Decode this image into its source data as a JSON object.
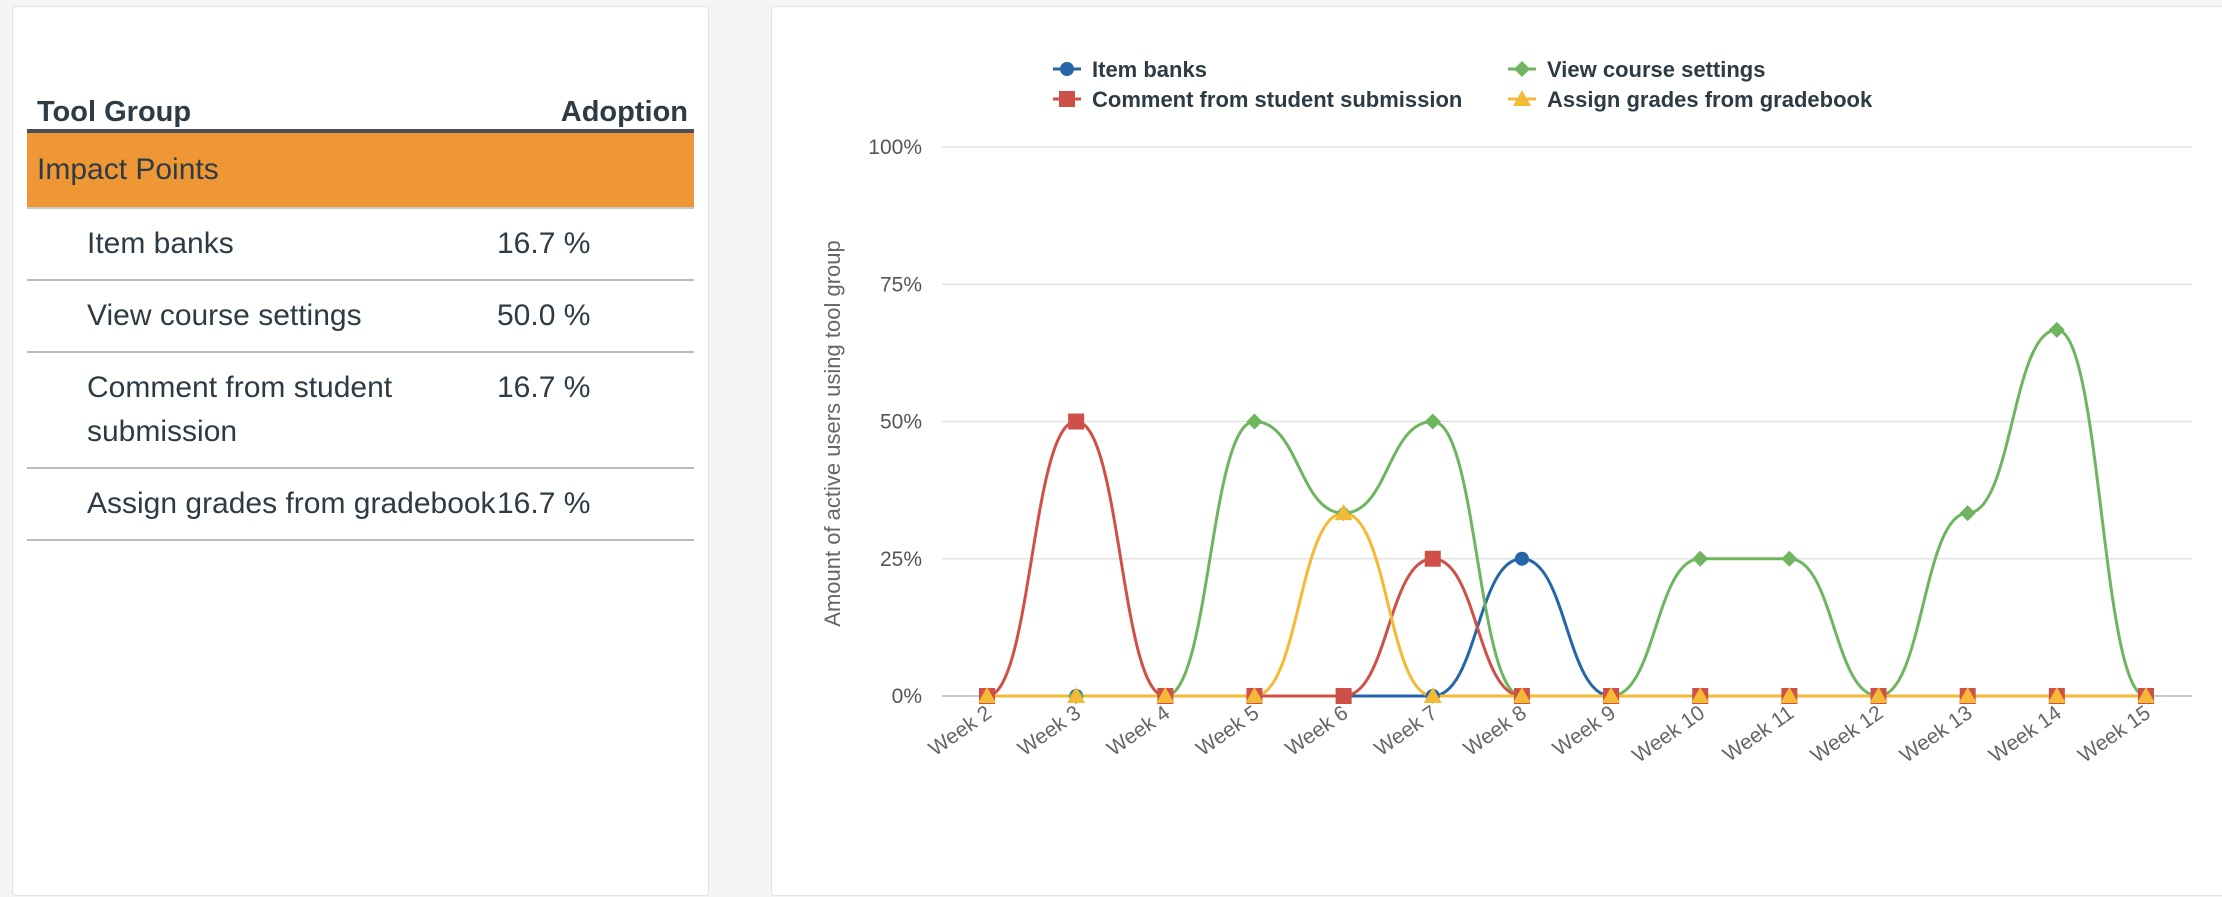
{
  "table": {
    "headers": {
      "group": "Tool Group",
      "adoption": "Adoption"
    },
    "group_label": "Impact Points",
    "group_color": "#ee9734",
    "rows": [
      {
        "name": "Item banks",
        "value": "16.7 %"
      },
      {
        "name": "View course settings",
        "value": "50.0 %"
      },
      {
        "name": "Comment from student submission",
        "value": "16.7 %"
      },
      {
        "name": "Assign grades from gradebook",
        "value": "16.7 %"
      }
    ]
  },
  "chart_data": {
    "type": "line",
    "smooth": true,
    "ylabel": "Amount of active users using tool group",
    "ylim": [
      0,
      100
    ],
    "y_ticks": [
      "0%",
      "25%",
      "50%",
      "75%",
      "100%"
    ],
    "categories": [
      "Week 2",
      "Week 3",
      "Week 4",
      "Week 5",
      "Week 6",
      "Week 7",
      "Week 8",
      "Week 9",
      "Week 10",
      "Week 11",
      "Week 12",
      "Week 13",
      "Week 14",
      "Week 15"
    ],
    "legend_position": "top",
    "series": [
      {
        "name": "Item banks",
        "color": "#2565a8",
        "marker": "circle",
        "values": [
          0,
          0,
          0,
          0,
          0,
          0,
          25,
          0,
          0,
          0,
          0,
          0,
          0,
          0
        ]
      },
      {
        "name": "View course settings",
        "color": "#6fb55f",
        "marker": "diamond",
        "values": [
          0,
          0,
          0,
          50,
          33.3,
          50,
          0,
          0,
          25,
          25,
          0,
          33.3,
          66.7,
          0
        ]
      },
      {
        "name": "Comment from student submission",
        "color": "#cf5048",
        "marker": "square",
        "values": [
          0,
          50,
          0,
          0,
          0,
          25,
          0,
          0,
          0,
          0,
          0,
          0,
          0,
          0
        ]
      },
      {
        "name": "Assign grades from gradebook",
        "color": "#f4b935",
        "marker": "triangle",
        "values": [
          0,
          0,
          0,
          0,
          33.3,
          0,
          0,
          0,
          0,
          0,
          0,
          0,
          0,
          0
        ]
      }
    ]
  }
}
